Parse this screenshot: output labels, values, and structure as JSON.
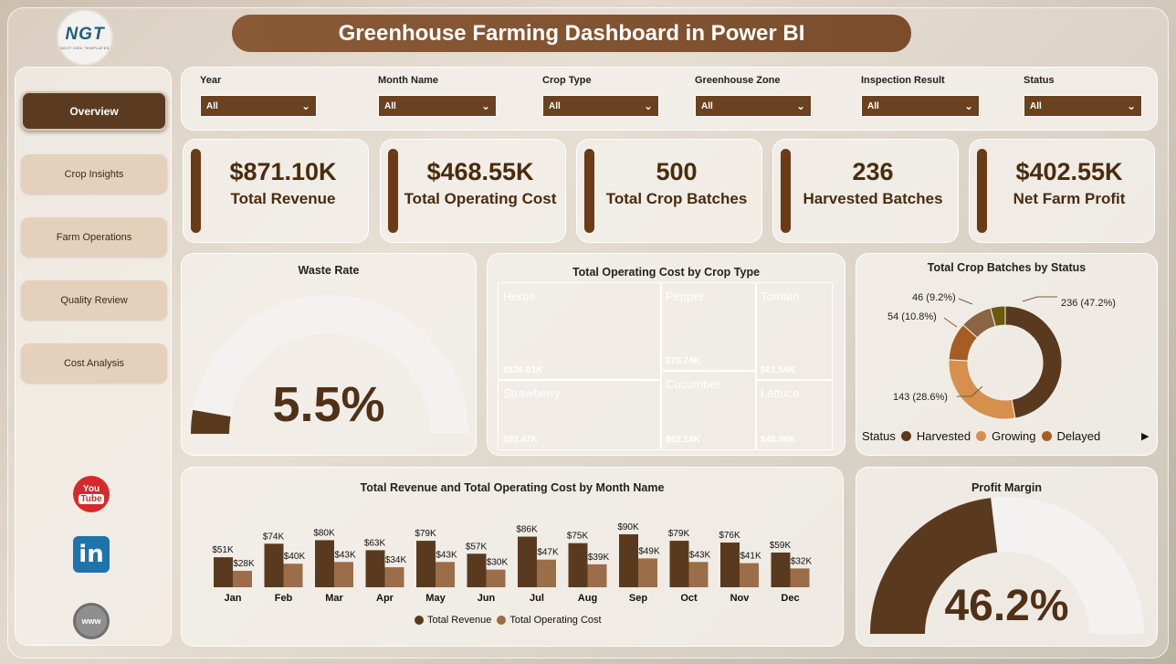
{
  "header": {
    "title": "Greenhouse Farming Dashboard in Power BI",
    "logo_text": "NGT",
    "logo_subtext": "NEXT GEN TEMPLATES"
  },
  "sidebar": {
    "items": [
      {
        "label": "Overview",
        "active": true
      },
      {
        "label": "Crop Insights",
        "active": false
      },
      {
        "label": "Farm Operations",
        "active": false
      },
      {
        "label": "Quality Review",
        "active": false
      },
      {
        "label": "Cost Analysis",
        "active": false
      }
    ],
    "social": {
      "youtube_top": "You",
      "youtube_bottom": "Tube",
      "linkedin": "in",
      "web": "www"
    }
  },
  "filters": [
    {
      "label": "Year",
      "value": "All"
    },
    {
      "label": "Month Name",
      "value": "All"
    },
    {
      "label": "Crop Type",
      "value": "All"
    },
    {
      "label": "Greenhouse Zone",
      "value": "All"
    },
    {
      "label": "Inspection Result",
      "value": "All"
    },
    {
      "label": "Status",
      "value": "All"
    }
  ],
  "kpis": [
    {
      "value": "$871.10K",
      "label": "Total Revenue"
    },
    {
      "value": "$468.55K",
      "label": "Total Operating Cost"
    },
    {
      "value": "500",
      "label": "Total Crop Batches"
    },
    {
      "value": "236",
      "label": "Harvested Batches"
    },
    {
      "value": "$402.55K",
      "label": "Net Farm Profit"
    }
  ],
  "waste_rate": {
    "title": "Waste Rate",
    "value": "5.5%",
    "fraction": 0.055
  },
  "treemap": {
    "title": "Total Operating Cost by Crop Type",
    "cells": [
      {
        "name": "Herbs",
        "value": "$136.61K",
        "color": "#553920"
      },
      {
        "name": "Pepper",
        "value": "$70.74K",
        "color": "#9c5a23"
      },
      {
        "name": "Tomato",
        "value": "$61.54K",
        "color": "#8d5f3c"
      },
      {
        "name": "Strawberry",
        "value": "$92.47K",
        "color": "#8a6140"
      },
      {
        "name": "Cucumber",
        "value": "$62.14K",
        "color": "#c88d4f"
      },
      {
        "name": "Lettuce",
        "value": "$45.06K",
        "color": "#b36b26"
      }
    ]
  },
  "donut": {
    "title": "Total Crop Batches by Status",
    "slices": [
      {
        "label": "236 (47.2%)",
        "value": 236,
        "color": "#5a3a1e"
      },
      {
        "label": "143 (28.6%)",
        "value": 143,
        "color": "#d4904c"
      },
      {
        "label": "54 (10.8%)",
        "value": 54,
        "color": "#a65c22"
      },
      {
        "label": "46 (9.2%)",
        "value": 46,
        "color": "#8b6445"
      },
      {
        "label": "",
        "value": 21,
        "color": "#6b5a0c"
      }
    ],
    "legend_title": "Status",
    "legend": [
      {
        "name": "Harvested",
        "color": "#5a3a1e"
      },
      {
        "name": "Growing",
        "color": "#d4904c"
      },
      {
        "name": "Delayed",
        "color": "#a65c22"
      }
    ]
  },
  "chart_data": {
    "type": "bar",
    "title": "Total Revenue and Total Operating Cost by Month Name",
    "categories": [
      "Jan",
      "Feb",
      "Mar",
      "Apr",
      "May",
      "Jun",
      "Jul",
      "Aug",
      "Sep",
      "Oct",
      "Nov",
      "Dec"
    ],
    "series": [
      {
        "name": "Total Revenue",
        "color": "#5a3a1e",
        "values": [
          51,
          74,
          80,
          63,
          79,
          57,
          86,
          75,
          90,
          79,
          76,
          59
        ],
        "labels": [
          "$51K",
          "$74K",
          "$80K",
          "$63K",
          "$79K",
          "$57K",
          "$86K",
          "$75K",
          "$90K",
          "$79K",
          "$76K",
          "$59K"
        ]
      },
      {
        "name": "Total Operating Cost",
        "color": "#9b6d48",
        "values": [
          28,
          40,
          43,
          34,
          43,
          30,
          47,
          39,
          49,
          43,
          41,
          32
        ],
        "labels": [
          "$28K",
          "$40K",
          "$43K",
          "$34K",
          "$43K",
          "$30K",
          "$47K",
          "$39K",
          "$49K",
          "$43K",
          "$41K",
          "$32K"
        ]
      }
    ],
    "ylim": [
      0,
      90
    ],
    "legend": "bottom"
  },
  "profit_margin": {
    "title": "Profit Margin",
    "value": "46.2%",
    "fraction": 0.462
  }
}
